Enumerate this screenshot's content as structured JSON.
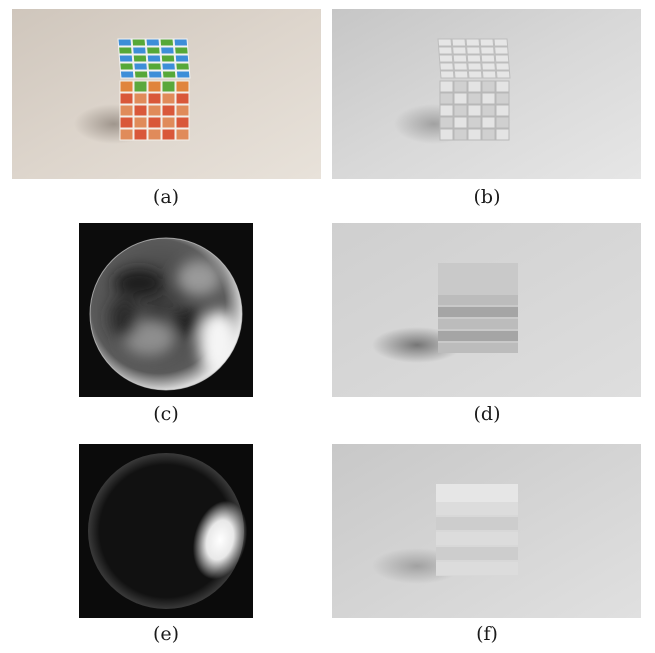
{
  "figure": {
    "panels": [
      {
        "label": "(a)",
        "content": "color photograph of a 5x5 Rubik's-style cube with blue, green and orange/red stickers on a pale surface"
      },
      {
        "label": "(b)",
        "content": "grayscale render of the cube (albedo removed)"
      },
      {
        "label": "(c)",
        "content": "lighting sphere: blurred mottled environment map on black"
      },
      {
        "label": "(d)",
        "content": "grayscale shading render of the cube with soft shadow"
      },
      {
        "label": "(e)",
        "content": "lighting sphere: single bright highlight on black"
      },
      {
        "label": "(f)",
        "content": "grayscale shading render of the cube, flatter lighting"
      }
    ]
  }
}
